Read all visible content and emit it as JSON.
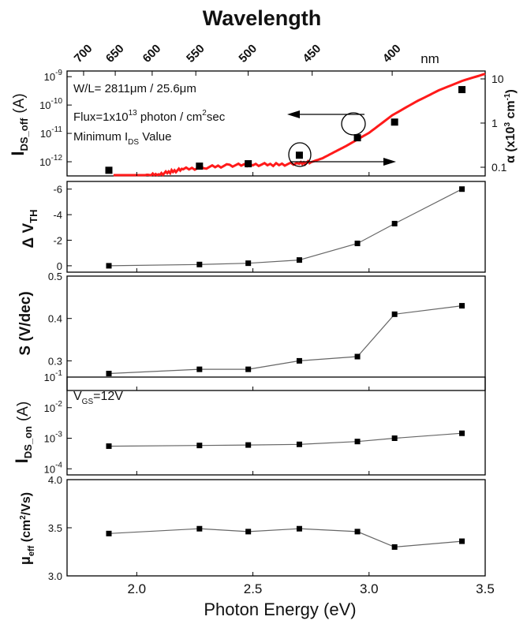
{
  "header": {
    "top_axis_title": "Wavelength",
    "top_axis_unit": "nm"
  },
  "chart_data": [
    {
      "type": "scatter",
      "panel": "ids_off",
      "ylabel": "I_DS_off (A)",
      "ylabel_main": "I",
      "ylabel_sub": "DS_off",
      "ylabel_unit": "(A)",
      "yscale": "log",
      "ylim": [
        1e-12,
        1e-09
      ],
      "yticks": [
        {
          "v": -12,
          "base": "10",
          "exp": "-12"
        },
        {
          "v": -11,
          "base": "10",
          "exp": "-11"
        },
        {
          "v": -10,
          "base": "10",
          "exp": "-10"
        },
        {
          "v": -9,
          "base": "10",
          "exp": "-9"
        }
      ],
      "x": [
        1.88,
        2.27,
        2.48,
        2.7,
        2.95,
        3.11,
        3.4
      ],
      "values": [
        5e-13,
        7e-13,
        8.5e-13,
        1.7e-12,
        7e-12,
        2.5e-11,
        3.5e-10
      ],
      "annotations": {
        "line1": "W/L= 2811μm / 25.6μm",
        "line2_a": "Flux=1x10",
        "line2_sup": "13",
        "line2_b": " photon / cm",
        "line2_sup2": "2",
        "line2_c": "sec",
        "line3_a": "Minimum I",
        "line3_sub": "DS",
        "line3_b": " Value"
      },
      "right_axis": {
        "label_a": "α (x10",
        "label_sup": "3",
        "label_b": " cm",
        "label_sup2": "-1",
        "label_c": ")",
        "yscale": "log",
        "ticks": [
          "0.1",
          "1",
          "10"
        ],
        "tick_values": [
          0.1,
          1,
          10
        ],
        "curve_color": "#ff1a1a",
        "curve_x": [
          1.9,
          1.95,
          2.0,
          2.05,
          2.1,
          2.15,
          2.2,
          2.3,
          2.4,
          2.5,
          2.6,
          2.7,
          2.75,
          2.8,
          2.85,
          2.9,
          3.0,
          3.1,
          3.2,
          3.3,
          3.4,
          3.5
        ],
        "curve_y": [
          0.03,
          0.045,
          0.05,
          0.065,
          0.07,
          0.08,
          0.09,
          0.1,
          0.11,
          0.115,
          0.115,
          0.12,
          0.13,
          0.16,
          0.22,
          0.3,
          0.6,
          1.5,
          3.0,
          5.5,
          9.0,
          13.0
        ]
      }
    },
    {
      "type": "line",
      "panel": "delta_vth",
      "ylabel_main": "Δ V",
      "ylabel_sub": "TH",
      "ylim": [
        0.5,
        -6.6
      ],
      "yticks": [
        {
          "v": -6,
          "label": "-6"
        },
        {
          "v": -4,
          "label": "-4"
        },
        {
          "v": -2,
          "label": "-2"
        },
        {
          "v": 0,
          "label": "0"
        }
      ],
      "x": [
        1.88,
        2.27,
        2.48,
        2.7,
        2.95,
        3.11,
        3.4
      ],
      "values": [
        0.0,
        -0.1,
        -0.2,
        -0.45,
        -1.75,
        -3.3,
        -6.0
      ]
    },
    {
      "type": "line",
      "panel": "s",
      "ylabel_main": "S (V/dec)",
      "ylim": [
        0.23,
        0.5
      ],
      "yticks": [
        {
          "v": 0.3,
          "label": "0.3"
        },
        {
          "v": 0.4,
          "label": "0.4"
        },
        {
          "v": 0.5,
          "label": "0.5"
        }
      ],
      "x": [
        1.88,
        2.27,
        2.48,
        2.7,
        2.95,
        3.11,
        3.4
      ],
      "values": [
        0.27,
        0.28,
        0.28,
        0.3,
        0.31,
        0.41,
        0.43
      ]
    },
    {
      "type": "line",
      "panel": "ids_on",
      "ylabel_main": "I",
      "ylabel_sub": "DS_on",
      "ylabel_unit": "(A)",
      "yscale": "log",
      "ylim": [
        0.0001,
        0.1
      ],
      "yticks": [
        {
          "v": -4,
          "base": "10",
          "exp": "-4"
        },
        {
          "v": -3,
          "base": "10",
          "exp": "-3"
        },
        {
          "v": -2,
          "base": "10",
          "exp": "-2"
        },
        {
          "v": -1,
          "base": "10",
          "exp": "-1"
        }
      ],
      "annotation": {
        "a": "V",
        "sub": "GS",
        "b": "=12V"
      },
      "x": [
        1.88,
        2.27,
        2.48,
        2.7,
        2.95,
        3.11,
        3.4
      ],
      "values": [
        0.00055,
        0.00058,
        0.0006,
        0.00063,
        0.00078,
        0.001,
        0.00145
      ]
    },
    {
      "type": "line",
      "panel": "mu_eff",
      "ylabel_main": "μ",
      "ylabel_sub": "eff",
      "ylabel_unit_a": " (cm",
      "ylabel_unit_sup": "2",
      "ylabel_unit_b": "/Vs)",
      "ylim": [
        3.0,
        4.0
      ],
      "yticks": [
        {
          "v": 3.0,
          "label": "3.0"
        },
        {
          "v": 3.5,
          "label": "3.5"
        },
        {
          "v": 4.0,
          "label": "4.0"
        }
      ],
      "x": [
        1.88,
        2.27,
        2.48,
        2.7,
        2.95,
        3.11,
        3.4
      ],
      "values": [
        3.44,
        3.49,
        3.46,
        3.49,
        3.46,
        3.3,
        3.36
      ]
    }
  ],
  "x_axis": {
    "label": "Photon Energy (eV)",
    "xlim": [
      1.7,
      3.5
    ],
    "ticks": [
      {
        "v": 2.0,
        "label": "2.0"
      },
      {
        "v": 2.5,
        "label": "2.5"
      },
      {
        "v": 3.0,
        "label": "3.0"
      },
      {
        "v": 3.5,
        "label": "3.5"
      }
    ]
  },
  "top_axis": {
    "ticks": [
      {
        "nm": 700,
        "label": "700"
      },
      {
        "nm": 650,
        "label": "650"
      },
      {
        "nm": 600,
        "label": "600"
      },
      {
        "nm": 550,
        "label": "550"
      },
      {
        "nm": 500,
        "label": "500"
      },
      {
        "nm": 450,
        "label": "450"
      },
      {
        "nm": 400,
        "label": "400"
      }
    ]
  },
  "colors": {
    "marker": "#000000",
    "line": "#666666",
    "red_curve": "#ff1a1a"
  }
}
